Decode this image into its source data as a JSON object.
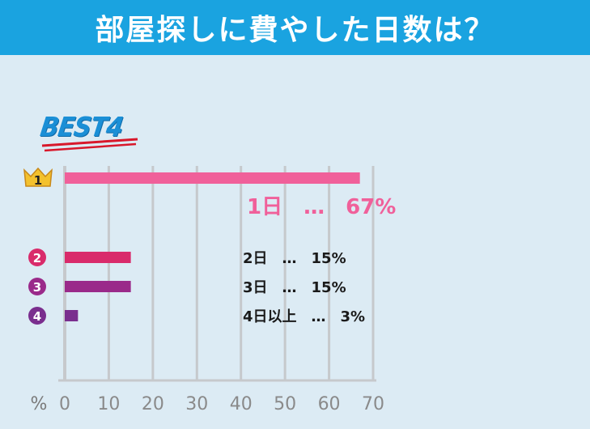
{
  "header": {
    "title": "部屋探しに費やした日数は？"
  },
  "badge": {
    "text": "BEST4"
  },
  "chart_data": {
    "type": "bar",
    "orientation": "horizontal",
    "categories": [
      "1日",
      "2日",
      "3日",
      "4日以上"
    ],
    "ranks": [
      "1",
      "2",
      "3",
      "4"
    ],
    "values": [
      67,
      15,
      15,
      3
    ],
    "value_labels": [
      "1日　…　67%",
      "2日　…　15%",
      "3日　…　15%",
      "4日以上　…　3%"
    ],
    "unit_label": "%",
    "xlim": [
      0,
      70
    ],
    "x_ticks": [
      0,
      10,
      20,
      30,
      40,
      50,
      60,
      70
    ],
    "grid": true,
    "colors": [
      "#f0609a",
      "#d92b6b",
      "#9a2a8a",
      "#7a2e8e"
    ]
  }
}
